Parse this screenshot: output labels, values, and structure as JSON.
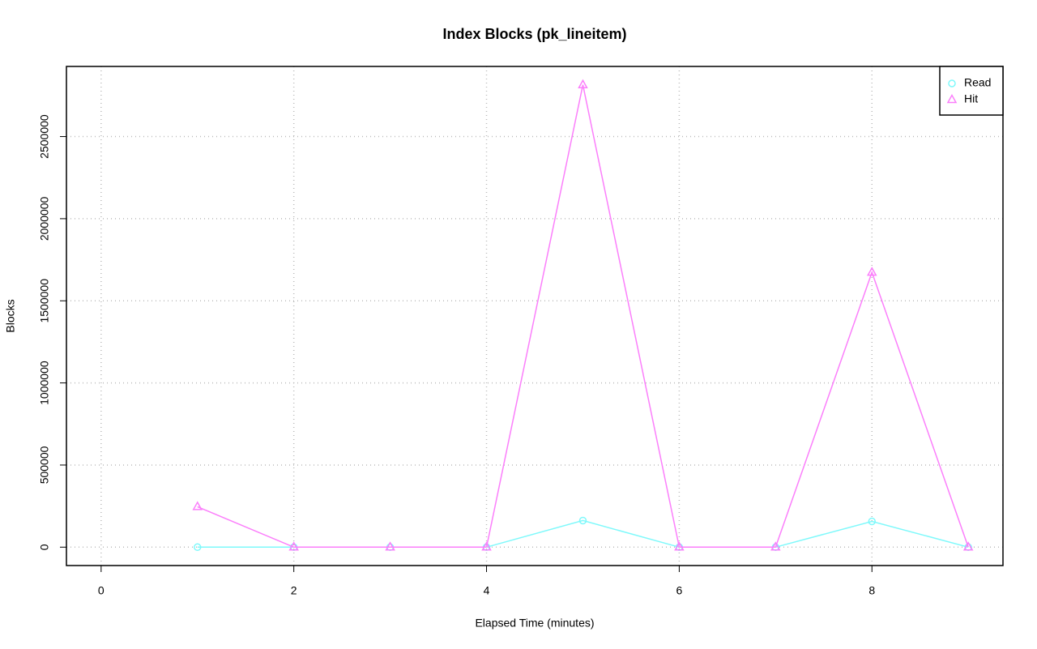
{
  "chart_data": {
    "type": "line",
    "title": "Index Blocks (pk_lineitem)",
    "x_label": "Elapsed Time (minutes)",
    "y_label": "Blocks",
    "x": [
      1,
      2,
      3,
      4,
      5,
      6,
      7,
      8,
      9
    ],
    "series": [
      {
        "name": "Read",
        "color": "#7ff9fb",
        "marker": "circle",
        "values": [
          0,
          0,
          0,
          0,
          162000,
          0,
          0,
          157000,
          0
        ]
      },
      {
        "name": "Hit",
        "color": "#fb7ffb",
        "marker": "triangle",
        "values": [
          246000,
          0,
          0,
          0,
          2815000,
          0,
          0,
          1673000,
          0
        ]
      }
    ],
    "xlim": [
      -0.36,
      9.36
    ],
    "xticks": [
      0,
      2,
      4,
      6,
      8
    ],
    "ylim": [
      -112000,
      2927000
    ],
    "yticks": [
      0,
      500000,
      1000000,
      1500000,
      2000000,
      2500000
    ],
    "grid": true,
    "legend": "top-right"
  }
}
